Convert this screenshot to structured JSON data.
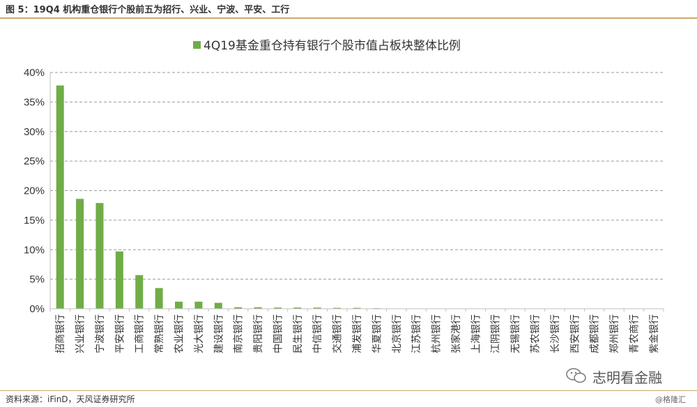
{
  "figure": {
    "title": "图 5：19Q4 机构重仓银行个股前五为招行、兴业、宁波、平安、工行",
    "source": "资料来源：iFinD，天风证券研究所",
    "watermark_main": "志明看金融",
    "watermark_small": "@格隆汇"
  },
  "chart_data": {
    "type": "bar",
    "legend": "4Q19基金重仓持有银行个股市值占板块整体比例",
    "legend_position": "top-center",
    "categories": [
      "招商银行",
      "兴业银行",
      "宁波银行",
      "平安银行",
      "工商银行",
      "常熟银行",
      "农业银行",
      "光大银行",
      "建设银行",
      "南京银行",
      "贵阳银行",
      "中国银行",
      "民生银行",
      "中信银行",
      "交通银行",
      "浦发银行",
      "华夏银行",
      "北京银行",
      "江苏银行",
      "杭州银行",
      "张家港行",
      "上海银行",
      "江阴银行",
      "无锡银行",
      "苏农银行",
      "长沙银行",
      "西安银行",
      "成都银行",
      "郑州银行",
      "青农商行",
      "紫金银行"
    ],
    "series": [
      {
        "values": [
          37.8,
          18.6,
          17.9,
          9.7,
          5.7,
          3.5,
          1.2,
          1.2,
          1.0,
          0.25,
          0.25,
          0.2,
          0.2,
          0.2,
          0.15,
          0.15,
          0.1,
          0.05,
          0.05,
          0.05,
          0.02,
          0.02,
          0.01,
          0.01,
          0.01,
          0.01,
          0.01,
          0.01,
          0.01,
          0.01,
          0.01
        ]
      }
    ],
    "yticks": [
      "0%",
      "5%",
      "10%",
      "15%",
      "20%",
      "25%",
      "30%",
      "35%",
      "40%"
    ],
    "ylim": [
      0,
      40
    ],
    "gridlines": "horizontal dashed",
    "bar_color": "#70ad47"
  }
}
